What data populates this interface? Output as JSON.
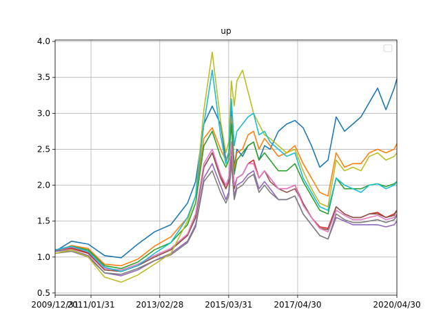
{
  "chart_data": {
    "type": "line",
    "title": "up",
    "xlabel": "",
    "ylabel": "",
    "grid": true,
    "legend": "top-right (empty)",
    "xlim": [
      "2009/12/31",
      "2020/04/30"
    ],
    "ylim": [
      0.47,
      4.02
    ],
    "x_ticks": [
      "2009/12/31",
      "2011/01/31",
      "2013/02/28",
      "2015/03/31",
      "2017/04/30",
      "2020/04/30"
    ],
    "y_ticks": [
      "0.5",
      "1.0",
      "1.5",
      "2.0",
      "2.5",
      "3.0",
      "3.5",
      "4.0"
    ],
    "x": [
      "2009/12/31",
      "2010/06/30",
      "2010/12/31",
      "2011/06/30",
      "2011/12/31",
      "2012/06/30",
      "2012/12/31",
      "2013/06/30",
      "2013/12/31",
      "2014/03/31",
      "2014/06/30",
      "2014/09/30",
      "2014/12/31",
      "2015/02/28",
      "2015/03/31",
      "2015/04/30",
      "2015/05/31",
      "2015/06/30",
      "2015/08/31",
      "2015/10/31",
      "2015/12/31",
      "2016/02/29",
      "2016/04/30",
      "2016/06/30",
      "2016/09/30",
      "2016/12/31",
      "2017/03/31",
      "2017/06/30",
      "2017/09/30",
      "2017/12/31",
      "2018/03/31",
      "2018/06/30",
      "2018/09/30",
      "2018/12/31",
      "2019/03/31",
      "2019/06/30",
      "2019/09/30",
      "2019/12/31",
      "2020/03/31",
      "2020/04/30"
    ],
    "series": [
      {
        "color": "#1f77b4",
        "values": [
          1.08,
          1.22,
          1.18,
          1.02,
          0.99,
          1.18,
          1.35,
          1.45,
          1.75,
          2.05,
          2.85,
          3.1,
          2.85,
          2.35,
          2.45,
          3.05,
          2.25,
          2.5,
          2.4,
          2.55,
          2.6,
          2.35,
          2.55,
          2.5,
          2.75,
          2.85,
          2.9,
          2.8,
          2.55,
          2.25,
          2.35,
          2.95,
          2.75,
          2.85,
          2.95,
          3.15,
          3.35,
          3.05,
          3.35,
          3.48
        ]
      },
      {
        "color": "#ff7f0e",
        "values": [
          1.08,
          1.16,
          1.12,
          0.9,
          0.88,
          0.97,
          1.15,
          1.28,
          1.55,
          1.85,
          2.65,
          2.8,
          2.5,
          2.35,
          2.45,
          2.95,
          2.2,
          2.45,
          2.5,
          2.7,
          2.75,
          2.5,
          2.65,
          2.55,
          2.4,
          2.45,
          2.55,
          2.3,
          2.1,
          1.9,
          1.85,
          2.45,
          2.25,
          2.3,
          2.3,
          2.45,
          2.5,
          2.45,
          2.5,
          2.58
        ]
      },
      {
        "color": "#2ca02c",
        "values": [
          1.08,
          1.15,
          1.1,
          0.88,
          0.84,
          0.93,
          1.1,
          1.2,
          1.45,
          1.75,
          2.55,
          2.75,
          2.4,
          2.25,
          2.35,
          2.85,
          2.15,
          2.35,
          2.45,
          2.55,
          2.6,
          2.35,
          2.45,
          2.35,
          2.2,
          2.2,
          2.3,
          2.05,
          1.85,
          1.65,
          1.6,
          2.1,
          1.95,
          1.95,
          1.95,
          2.0,
          2.02,
          1.98,
          2.02,
          2.05
        ]
      },
      {
        "color": "#d62728",
        "values": [
          1.1,
          1.12,
          1.05,
          0.82,
          0.8,
          0.88,
          1.0,
          1.1,
          1.3,
          1.55,
          2.25,
          2.45,
          2.15,
          1.95,
          2.05,
          2.6,
          1.95,
          2.1,
          2.15,
          2.3,
          2.35,
          2.1,
          2.2,
          2.1,
          1.95,
          1.95,
          2.0,
          1.75,
          1.55,
          1.42,
          1.4,
          1.7,
          1.6,
          1.55,
          1.55,
          1.6,
          1.62,
          1.55,
          1.6,
          1.65
        ]
      },
      {
        "color": "#9467bd",
        "values": [
          1.08,
          1.1,
          1.02,
          0.78,
          0.74,
          0.82,
          0.95,
          1.05,
          1.22,
          1.45,
          2.1,
          2.3,
          2.0,
          1.8,
          1.9,
          2.4,
          1.85,
          2.0,
          2.05,
          2.15,
          2.2,
          1.95,
          2.05,
          1.95,
          1.8,
          1.8,
          1.85,
          1.6,
          1.45,
          1.3,
          1.25,
          1.55,
          1.5,
          1.45,
          1.45,
          1.45,
          1.45,
          1.42,
          1.45,
          1.5
        ]
      },
      {
        "color": "#8c564b",
        "values": [
          1.1,
          1.13,
          1.06,
          0.82,
          0.8,
          0.88,
          1.0,
          1.1,
          1.3,
          1.55,
          2.25,
          2.45,
          2.1,
          1.95,
          2.05,
          2.55,
          1.95,
          2.1,
          2.15,
          2.3,
          2.3,
          2.1,
          2.2,
          2.05,
          1.95,
          1.9,
          1.95,
          1.75,
          1.55,
          1.4,
          1.38,
          1.7,
          1.6,
          1.55,
          1.55,
          1.6,
          1.6,
          1.55,
          1.58,
          1.65
        ]
      },
      {
        "color": "#e377c2",
        "values": [
          1.1,
          1.14,
          1.08,
          0.84,
          0.82,
          0.9,
          1.02,
          1.12,
          1.32,
          1.6,
          2.3,
          2.5,
          2.15,
          2.0,
          2.1,
          2.6,
          2.0,
          2.1,
          2.15,
          2.3,
          2.3,
          2.1,
          2.2,
          2.1,
          1.95,
          1.95,
          2.0,
          1.72,
          1.55,
          1.4,
          1.35,
          1.65,
          1.58,
          1.52,
          1.52,
          1.55,
          1.58,
          1.52,
          1.55,
          1.6
        ]
      },
      {
        "color": "#7f7f7f",
        "values": [
          1.05,
          1.08,
          1.0,
          0.78,
          0.76,
          0.84,
          0.95,
          1.03,
          1.2,
          1.42,
          2.05,
          2.2,
          1.9,
          1.75,
          1.85,
          2.3,
          1.8,
          1.95,
          2.0,
          2.1,
          2.15,
          1.9,
          2.0,
          1.9,
          1.8,
          1.8,
          1.85,
          1.6,
          1.45,
          1.3,
          1.25,
          1.6,
          1.52,
          1.48,
          1.48,
          1.5,
          1.52,
          1.48,
          1.52,
          1.58
        ]
      },
      {
        "color": "#bcbd22",
        "values": [
          1.05,
          1.1,
          1.0,
          0.72,
          0.65,
          0.75,
          0.9,
          1.05,
          1.5,
          1.85,
          3.05,
          3.85,
          2.9,
          2.45,
          2.6,
          3.45,
          3.1,
          3.45,
          3.6,
          3.3,
          3.0,
          2.85,
          2.7,
          2.65,
          2.55,
          2.45,
          2.5,
          2.2,
          1.95,
          1.75,
          1.7,
          2.35,
          2.2,
          2.25,
          2.2,
          2.4,
          2.45,
          2.35,
          2.4,
          2.45
        ]
      },
      {
        "color": "#17becf",
        "values": [
          1.1,
          1.15,
          1.08,
          0.86,
          0.8,
          0.88,
          1.05,
          1.2,
          1.55,
          1.85,
          2.85,
          3.6,
          2.7,
          2.3,
          2.45,
          3.2,
          2.55,
          2.75,
          2.85,
          2.95,
          3.0,
          2.7,
          2.75,
          2.6,
          2.5,
          2.4,
          2.45,
          2.1,
          1.9,
          1.7,
          1.65,
          2.1,
          2.0,
          1.95,
          1.9,
          2.0,
          2.02,
          1.95,
          2.0,
          2.05
        ]
      }
    ]
  }
}
